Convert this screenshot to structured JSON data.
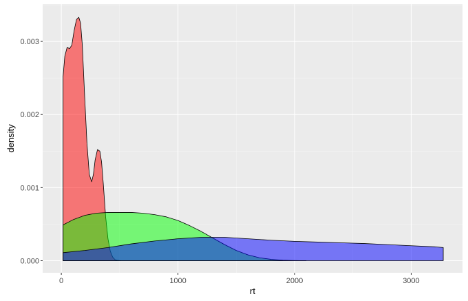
{
  "chart_data": {
    "type": "area",
    "chart_style": "density",
    "title": "",
    "xlabel": "rt",
    "ylabel": "density",
    "xlim": [
      -160,
      3440
    ],
    "ylim": [
      -0.000165,
      0.00351
    ],
    "x_ticks": [
      0,
      1000,
      2000,
      3000
    ],
    "x_tick_labels": [
      "0",
      "1000",
      "2000",
      "3000"
    ],
    "y_ticks": [
      0.0,
      0.001,
      0.002,
      0.003
    ],
    "y_tick_labels": [
      "0.000",
      "0.001",
      "0.002",
      "0.003"
    ],
    "grid": true,
    "legend": "none",
    "colors": {
      "panel_background": "#ebebeb",
      "major_grid": "#ffffff",
      "minor_grid": "#f5f5f5",
      "outline": "#000000",
      "tick_text": "#4d4d4d"
    },
    "series": [
      {
        "color": "#ff0000",
        "opacity": 0.5,
        "x": [
          15,
          30,
          50,
          70,
          90,
          110,
          130,
          150,
          165,
          180,
          200,
          220,
          240,
          260,
          275,
          290,
          310,
          330,
          345,
          360,
          380,
          400,
          420,
          440,
          460,
          480,
          500,
          510
        ],
        "y": [
          0.00252,
          0.0028,
          0.00292,
          0.0029,
          0.00295,
          0.00315,
          0.0033,
          0.00333,
          0.00325,
          0.00295,
          0.00225,
          0.0016,
          0.00118,
          0.00108,
          0.00118,
          0.00138,
          0.00152,
          0.0015,
          0.00135,
          0.00105,
          0.0006,
          0.0003,
          0.00013,
          5e-05,
          1.5e-05,
          5e-06,
          1.5e-06,
          0.0
        ]
      },
      {
        "color": "#00ff00",
        "opacity": 0.5,
        "x": [
          15,
          100,
          200,
          300,
          400,
          500,
          600,
          700,
          800,
          900,
          1000,
          1100,
          1200,
          1300,
          1400,
          1500,
          1600,
          1700,
          1800,
          1900,
          2000,
          2100
        ],
        "y": [
          0.00049,
          0.00056,
          0.00062,
          0.00065,
          0.00066,
          0.00066,
          0.00066,
          0.00065,
          0.00063,
          0.0006,
          0.00055,
          0.00048,
          0.0004,
          0.00031,
          0.00022,
          0.00014,
          8e-05,
          4e-05,
          1.8e-05,
          7e-06,
          2e-06,
          0.0
        ]
      },
      {
        "color": "#0000ff",
        "opacity": 0.5,
        "x": [
          15,
          200,
          400,
          600,
          800,
          1000,
          1200,
          1400,
          1600,
          1800,
          2000,
          2200,
          2400,
          2600,
          2800,
          3000,
          3200,
          3275
        ],
        "y": [
          0.00011,
          0.00014,
          0.00018,
          0.00023,
          0.00027,
          0.0003,
          0.00032,
          0.00032,
          0.0003,
          0.00028,
          0.000265,
          0.000255,
          0.000245,
          0.000235,
          0.00022,
          0.000205,
          0.00019,
          0.00018
        ]
      }
    ]
  }
}
